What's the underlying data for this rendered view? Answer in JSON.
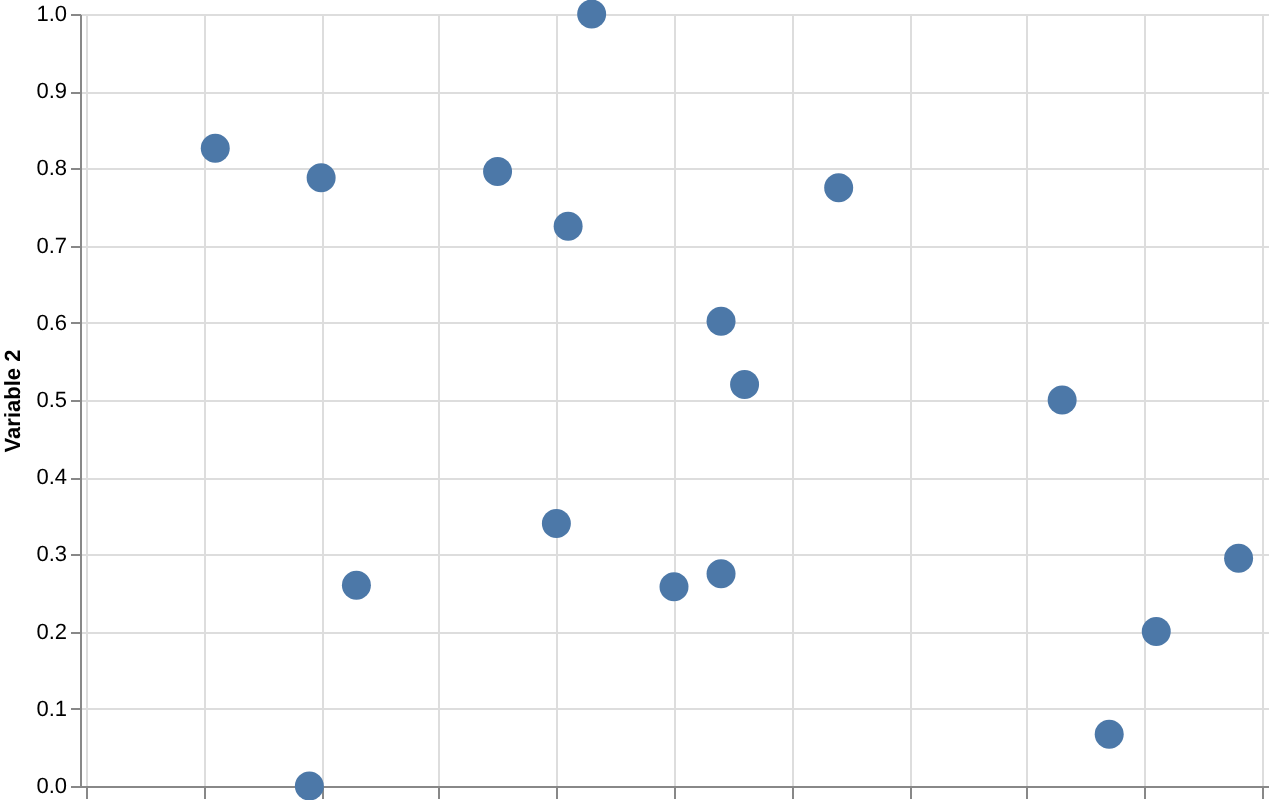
{
  "chart_data": {
    "type": "scatter",
    "ylabel": "Variable 2",
    "grid": true,
    "marker": "circle",
    "tick_labels": "y",
    "categories": [
      null,
      null,
      null,
      null,
      null,
      null,
      null,
      null,
      null,
      null,
      null,
      null,
      null,
      null,
      null,
      null,
      null,
      null,
      null,
      null,
      null,
      null,
      null,
      null,
      null,
      null,
      null,
      null,
      null,
      null,
      null,
      null,
      null,
      null,
      null,
      null,
      null,
      null,
      null,
      null,
      null,
      null,
      null,
      null,
      null,
      null,
      null,
      null,
      null,
      null,
      null,
      null,
      null,
      null,
      null,
      null,
      null,
      null,
      null,
      null,
      null,
      null,
      null,
      null,
      null,
      null,
      null,
      null,
      null,
      null,
      null,
      null,
      null,
      null,
      null,
      null,
      null,
      null,
      null,
      null,
      null,
      null,
      null,
      null,
      null,
      null,
      null,
      null,
      null,
      null,
      null,
      null,
      null,
      null,
      null,
      null,
      null,
      null,
      null,
      null,
      null
    ],
    "ylim": [
      0,
      1
    ],
    "yticks": [
      {
        "value": 0,
        "label": "0.0"
      },
      0.1,
      0.2,
      0.3,
      0.4,
      0.5,
      0.6,
      0.7,
      0.8,
      0.9,
      {
        "value": 1,
        "label": "1.0"
      }
    ],
    "series": [
      {
        "color": "#4c78a8",
        "values": [
          null,
          null,
          null,
          null,
          null,
          null,
          null,
          null,
          null,
          null,
          null,
          0.826,
          null,
          null,
          null,
          null,
          null,
          null,
          null,
          0.0,
          0.788,
          null,
          null,
          0.26,
          null,
          null,
          null,
          null,
          null,
          null,
          null,
          null,
          null,
          null,
          null,
          0.796,
          null,
          null,
          null,
          null,
          0.34,
          0.725,
          null,
          1.0,
          null,
          null,
          null,
          null,
          null,
          null,
          0.258,
          null,
          null,
          null,
          0.602,
          null,
          0.52,
          null,
          null,
          null,
          null,
          null,
          null,
          null,
          0.775,
          null,
          null,
          null,
          null,
          null,
          null,
          null,
          null,
          null,
          null,
          null,
          null,
          null,
          null,
          null,
          null,
          null,
          null,
          0.5,
          null,
          null,
          null,
          0.067,
          null,
          null,
          null,
          0.2,
          null,
          null,
          null,
          null,
          null,
          null,
          0.295,
          null,
          null
        ]
      },
      {
        "color": "#4c78a8",
        "values": [
          null,
          null,
          null,
          null,
          null,
          null,
          null,
          null,
          null,
          null,
          null,
          null,
          null,
          null,
          null,
          null,
          null,
          null,
          null,
          null,
          null,
          null,
          null,
          null,
          null,
          null,
          null,
          null,
          null,
          null,
          null,
          null,
          null,
          null,
          null,
          null,
          null,
          null,
          null,
          null,
          null,
          null,
          null,
          null,
          null,
          null,
          null,
          null,
          null,
          null,
          null,
          null,
          null,
          null,
          0.275,
          null,
          null,
          null,
          null,
          null,
          null,
          null,
          null,
          null,
          null,
          null,
          null,
          null,
          null,
          null,
          null,
          null,
          null,
          null,
          null,
          null,
          null,
          null,
          null,
          null,
          null,
          null,
          null,
          null,
          null,
          null,
          null,
          null,
          null,
          null,
          null,
          null,
          null,
          null,
          null,
          null,
          null,
          null,
          null,
          null,
          null
        ]
      }
    ]
  }
}
